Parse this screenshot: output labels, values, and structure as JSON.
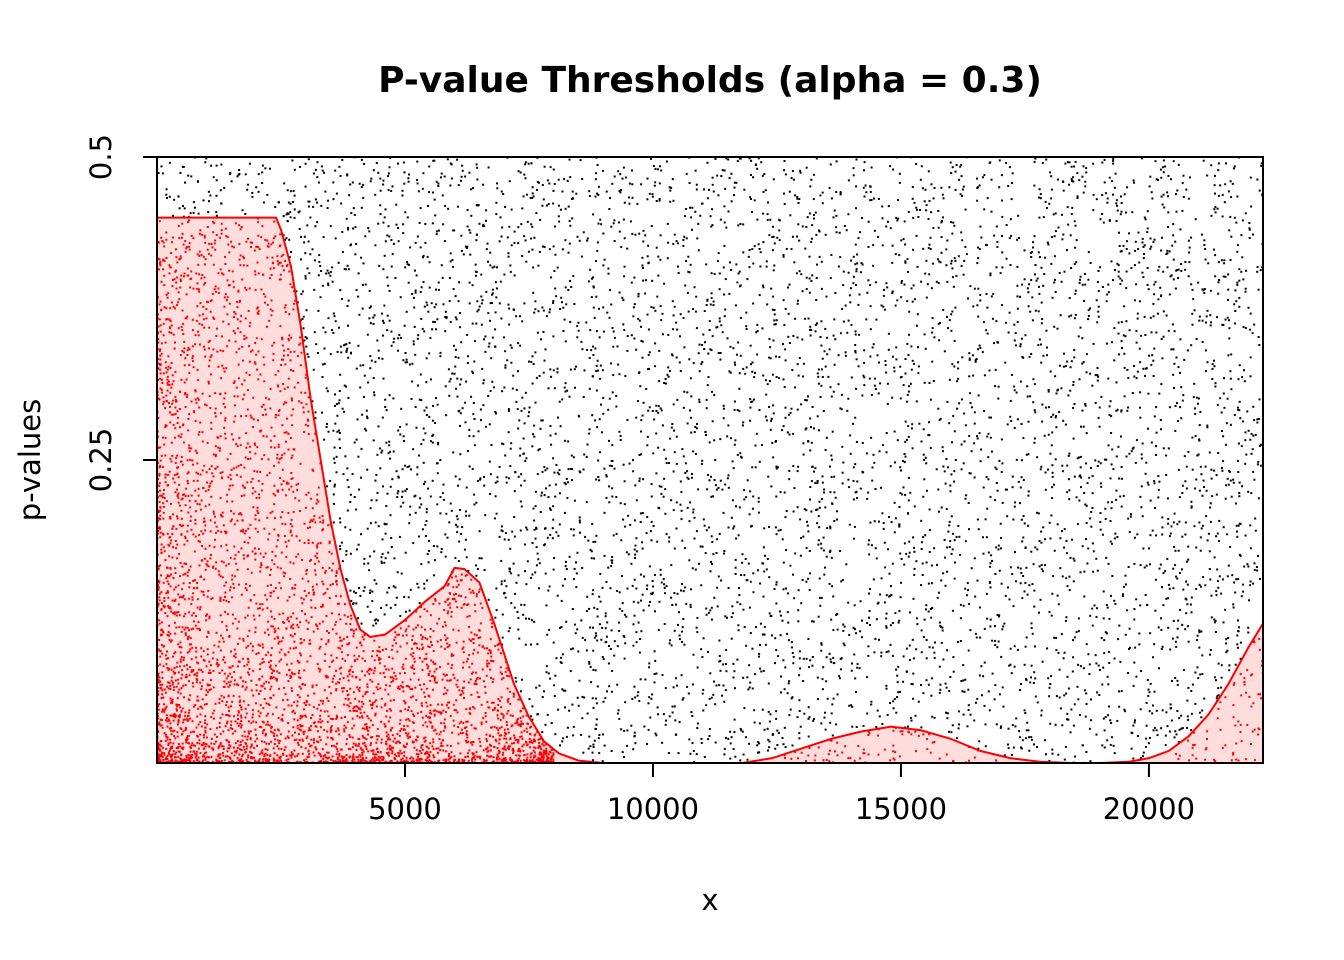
{
  "chart_data": {
    "type": "scatter",
    "title": "P-value Thresholds (alpha = 0.3)",
    "xlabel": "x",
    "ylabel": "p-values",
    "xlim": [
      0,
      22300
    ],
    "ylim": [
      0,
      0.5
    ],
    "x_ticks": [
      5000,
      10000,
      15000,
      20000
    ],
    "x_tick_labels": [
      "5000",
      "10000",
      "15000",
      "20000"
    ],
    "y_ticks": [
      0.25,
      0.5
    ],
    "y_tick_labels": [
      "0.25",
      "0.5"
    ],
    "grid": false,
    "legend": "none",
    "colors": {
      "points_above": "#000000",
      "points_below": "#ff0000",
      "threshold_line": "#ff0000",
      "threshold_fill": "#ffdddd"
    },
    "threshold_curve": {
      "x": [
        0,
        2400,
        2500,
        2700,
        2900,
        3100,
        3300,
        3500,
        3700,
        3900,
        4100,
        4300,
        4600,
        5000,
        5400,
        5800,
        6000,
        6200,
        6500,
        6800,
        7000,
        7200,
        7500,
        7800,
        8100,
        8500,
        9000,
        10000,
        11000,
        11800,
        12400,
        13000,
        13600,
        14200,
        14800,
        15400,
        16000,
        16600,
        17200,
        17800,
        18400,
        19000,
        19600,
        20000,
        20400,
        20800,
        21200,
        21600,
        22000,
        22300
      ],
      "y": [
        0.45,
        0.45,
        0.44,
        0.41,
        0.36,
        0.3,
        0.25,
        0.2,
        0.16,
        0.13,
        0.11,
        0.104,
        0.106,
        0.118,
        0.133,
        0.146,
        0.161,
        0.16,
        0.149,
        0.115,
        0.09,
        0.065,
        0.038,
        0.018,
        0.008,
        0.002,
        0.0,
        0.0,
        0.0,
        0.0,
        0.004,
        0.012,
        0.02,
        0.026,
        0.03,
        0.027,
        0.02,
        0.01,
        0.004,
        0.001,
        0.0,
        0.0,
        0.001,
        0.004,
        0.01,
        0.022,
        0.04,
        0.065,
        0.095,
        0.115
      ]
    },
    "series": [
      {
        "name": "",
        "distribution": "uniform",
        "count": 7000,
        "x_range": [
          0,
          22300
        ],
        "y_range": [
          0,
          0.5
        ]
      },
      {
        "name": "",
        "distribution": "concentrated near zero",
        "count": 3200,
        "x_range": [
          0,
          8000
        ],
        "y_range": [
          0,
          0.45
        ]
      }
    ]
  }
}
